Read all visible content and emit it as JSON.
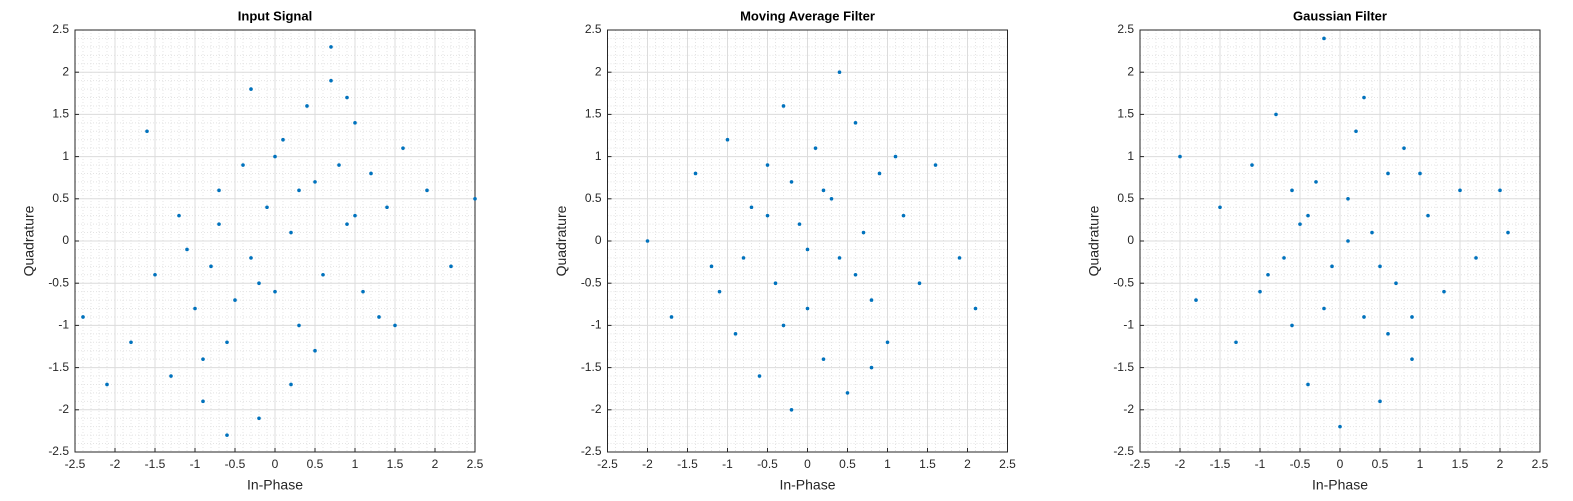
{
  "chart_data": [
    {
      "type": "scatter",
      "title": "Input Signal",
      "xlabel": "In-Phase",
      "ylabel": "Quadrature",
      "color": "#0072bd",
      "xlim": [
        -2.5,
        2.5
      ],
      "ylim": [
        -2.5,
        2.5
      ],
      "xticks": [
        -2.5,
        -2,
        -1.5,
        -1,
        -0.5,
        0,
        0.5,
        1,
        1.5,
        2,
        2.5
      ],
      "yticks": [
        -2.5,
        -2,
        -1.5,
        -1,
        -0.5,
        0,
        0.5,
        1,
        1.5,
        2,
        2.5
      ],
      "grid": true,
      "x": [
        -2.4,
        -2.1,
        -1.8,
        -1.5,
        -1.3,
        -1.2,
        -1.0,
        -0.9,
        -0.8,
        -0.7,
        -0.6,
        -0.5,
        -0.4,
        -0.3,
        -0.2,
        -0.1,
        0,
        0.1,
        0.2,
        0.3,
        0.4,
        0.5,
        0.6,
        0.7,
        0.8,
        0.9,
        1.0,
        1.1,
        1.2,
        1.4,
        1.6,
        1.9,
        2.2,
        2.5,
        -1.6,
        -0.9,
        -0.3,
        0.2,
        0.7,
        1.3,
        -1.1,
        -0.6,
        0.0,
        0.5,
        1.0,
        -0.2,
        0.3,
        0.9,
        -0.7,
        1.5
      ],
      "y": [
        -0.9,
        -1.7,
        -1.2,
        -0.4,
        -1.6,
        0.3,
        -0.8,
        -1.9,
        -0.3,
        0.6,
        -1.2,
        -0.7,
        0.9,
        -0.2,
        -2.1,
        0.4,
        -0.6,
        1.2,
        0.1,
        -1.0,
        1.6,
        0.7,
        -0.4,
        1.9,
        0.9,
        0.2,
        1.4,
        -0.6,
        0.8,
        0.4,
        1.1,
        0.6,
        -0.3,
        0.5,
        1.3,
        -1.4,
        1.8,
        -1.7,
        2.3,
        -0.9,
        -0.1,
        -2.3,
        1.0,
        -1.3,
        0.3,
        -0.5,
        0.6,
        1.7,
        0.2,
        -1.0
      ]
    },
    {
      "type": "scatter",
      "title": "Moving Average Filter",
      "xlabel": "In-Phase",
      "ylabel": "Quadrature",
      "color": "#0072bd",
      "xlim": [
        -2.5,
        2.5
      ],
      "ylim": [
        -2.5,
        2.5
      ],
      "xticks": [
        -2.5,
        -2,
        -1.5,
        -1,
        -0.5,
        0,
        0.5,
        1,
        1.5,
        2,
        2.5
      ],
      "yticks": [
        -2.5,
        -2,
        -1.5,
        -1,
        -0.5,
        0,
        0.5,
        1,
        1.5,
        2,
        2.5
      ],
      "grid": true,
      "x": [
        -2.0,
        -1.7,
        -1.4,
        -1.2,
        -1.0,
        -0.9,
        -0.7,
        -0.6,
        -0.5,
        -0.4,
        -0.3,
        -0.2,
        -0.1,
        0,
        0.1,
        0.2,
        0.3,
        0.4,
        0.5,
        0.6,
        0.7,
        0.8,
        0.9,
        1.0,
        1.2,
        1.4,
        1.6,
        1.9,
        2.1,
        -0.8,
        -0.3,
        0.2,
        0.6,
        -1.1,
        1.1,
        -0.5,
        0.4,
        0.0,
        -0.2,
        0.8
      ],
      "y": [
        0.0,
        -0.9,
        0.8,
        -0.3,
        1.2,
        -1.1,
        0.4,
        -1.6,
        0.9,
        -0.5,
        1.6,
        -2.0,
        0.2,
        -0.8,
        1.1,
        -1.4,
        0.5,
        -0.2,
        -1.8,
        1.4,
        0.1,
        -0.7,
        0.8,
        -1.2,
        0.3,
        -0.5,
        0.9,
        -0.2,
        -0.8,
        -0.2,
        -1.0,
        0.6,
        -0.4,
        -0.6,
        1.0,
        0.3,
        2.0,
        -0.1,
        0.7,
        -1.5
      ]
    },
    {
      "type": "scatter",
      "title": "Gaussian Filter",
      "xlabel": "In-Phase",
      "ylabel": "Quadrature",
      "color": "#0072bd",
      "xlim": [
        -2.5,
        2.5
      ],
      "ylim": [
        -2.5,
        2.5
      ],
      "xticks": [
        -2.5,
        -2,
        -1.5,
        -1,
        -0.5,
        0,
        0.5,
        1,
        1.5,
        2,
        2.5
      ],
      "yticks": [
        -2.5,
        -2,
        -1.5,
        -1,
        -0.5,
        0,
        0.5,
        1,
        1.5,
        2,
        2.5
      ],
      "grid": true,
      "x": [
        -2.0,
        -1.8,
        -1.5,
        -1.3,
        -1.1,
        -0.9,
        -0.8,
        -0.6,
        -0.5,
        -0.4,
        -0.3,
        -0.2,
        -0.1,
        0,
        0.1,
        0.2,
        0.3,
        0.4,
        0.5,
        0.6,
        0.7,
        0.8,
        0.9,
        1.1,
        1.3,
        1.5,
        1.7,
        2.0,
        2.1,
        -0.7,
        -0.2,
        0.3,
        0.5,
        -1.0,
        1.0,
        -0.4,
        0.6,
        0.1,
        -0.6,
        0.9
      ],
      "y": [
        1.0,
        -0.7,
        0.4,
        -1.2,
        0.9,
        -0.4,
        1.5,
        -1.0,
        0.2,
        -1.7,
        0.7,
        2.4,
        -0.3,
        -2.2,
        0.5,
        1.3,
        -0.9,
        0.1,
        -1.9,
        0.8,
        -0.5,
        1.1,
        -1.4,
        0.3,
        -0.6,
        0.6,
        -0.2,
        0.6,
        0.1,
        -0.2,
        -0.8,
        1.7,
        -0.3,
        -0.6,
        0.8,
        0.3,
        -1.1,
        0.0,
        0.6,
        -0.9
      ]
    }
  ]
}
